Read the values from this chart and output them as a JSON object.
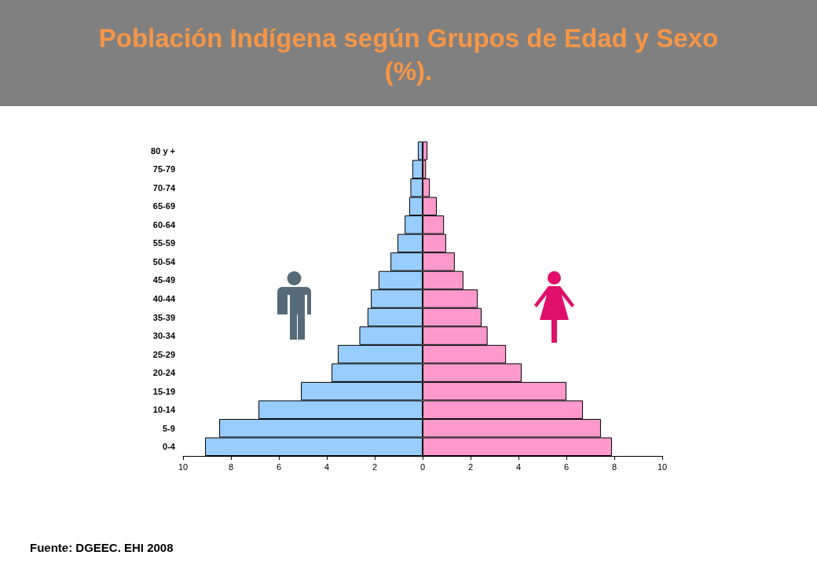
{
  "chart_data": {
    "type": "bar",
    "title": "Población Indígena según Grupos de Edad y Sexo (%).",
    "orientation": "horizontal",
    "stacked": true,
    "categories": [
      "80 y +",
      "75-79",
      "70-74",
      "65-69",
      "60-64",
      "55-59",
      "50-54",
      "45-49",
      "40-44",
      "35-39",
      "30-34",
      "25-29",
      "20-24",
      "15-19",
      "10-14",
      "5-9",
      "0-4"
    ],
    "series": [
      {
        "color": "#99ccff",
        "values": [
          -0.2,
          -0.43,
          -0.51,
          -0.56,
          -0.75,
          -1.05,
          -1.34,
          -1.84,
          -2.16,
          -2.3,
          -2.64,
          -3.54,
          -3.8,
          -5.08,
          -6.85,
          -8.49,
          -9.08
        ]
      },
      {
        "color": "#ff99cc",
        "values": [
          0.2,
          0.14,
          0.3,
          0.59,
          0.89,
          0.98,
          1.34,
          1.7,
          2.3,
          2.46,
          2.71,
          3.48,
          4.13,
          6.0,
          6.69,
          7.44,
          7.9
        ]
      }
    ],
    "xlim": [
      -10,
      10
    ],
    "xticks": [
      {
        "value": -10,
        "label": "10"
      },
      {
        "value": -8,
        "label": "8"
      },
      {
        "value": -6,
        "label": "6"
      },
      {
        "value": -4,
        "label": "4"
      },
      {
        "value": -2,
        "label": "2"
      },
      0,
      2,
      4,
      6,
      8,
      10
    ],
    "grid": false,
    "annotations": [
      "Fuente: DGEEC. EHI 2008"
    ]
  }
}
